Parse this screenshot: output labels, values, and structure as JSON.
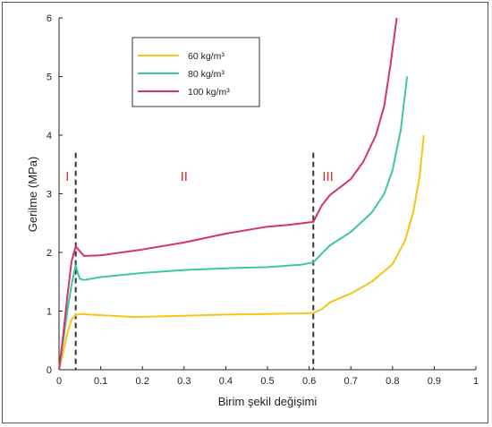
{
  "chart_data": {
    "type": "line",
    "title": "",
    "xlabel": "Birim şekil değişimi",
    "ylabel": "Gerilme (MPa)",
    "xlim": [
      0,
      1
    ],
    "ylim": [
      0,
      6
    ],
    "xticks": [
      "0",
      "0.1",
      "0.2",
      "0.3",
      "0.4",
      "0.5",
      "0.6",
      "0.7",
      "0.8",
      "0.9",
      "1"
    ],
    "yticks": [
      "0",
      "1",
      "2",
      "3",
      "4",
      "5",
      "6"
    ],
    "grid": false,
    "legend_position": "top-left",
    "series": [
      {
        "name": "60 kg/m³",
        "color": "#f5c518",
        "points": [
          [
            0,
            0
          ],
          [
            0.01,
            0.3
          ],
          [
            0.02,
            0.62
          ],
          [
            0.03,
            0.86
          ],
          [
            0.04,
            0.93
          ],
          [
            0.05,
            0.95
          ],
          [
            0.1,
            0.93
          ],
          [
            0.18,
            0.9
          ],
          [
            0.3,
            0.92
          ],
          [
            0.4,
            0.94
          ],
          [
            0.5,
            0.95
          ],
          [
            0.58,
            0.96
          ],
          [
            0.61,
            0.97
          ],
          [
            0.63,
            1.03
          ],
          [
            0.65,
            1.15
          ],
          [
            0.7,
            1.3
          ],
          [
            0.75,
            1.5
          ],
          [
            0.8,
            1.8
          ],
          [
            0.83,
            2.2
          ],
          [
            0.85,
            2.7
          ],
          [
            0.865,
            3.3
          ],
          [
            0.875,
            4.0
          ]
        ]
      },
      {
        "name": "80 kg/m³",
        "color": "#3cc99a",
        "points": [
          [
            0,
            0
          ],
          [
            0.01,
            0.5
          ],
          [
            0.02,
            1.0
          ],
          [
            0.03,
            1.45
          ],
          [
            0.04,
            1.78
          ],
          [
            0.045,
            1.65
          ],
          [
            0.05,
            1.55
          ],
          [
            0.06,
            1.53
          ],
          [
            0.1,
            1.58
          ],
          [
            0.2,
            1.65
          ],
          [
            0.3,
            1.7
          ],
          [
            0.4,
            1.73
          ],
          [
            0.5,
            1.75
          ],
          [
            0.58,
            1.79
          ],
          [
            0.61,
            1.83
          ],
          [
            0.63,
            1.98
          ],
          [
            0.65,
            2.12
          ],
          [
            0.7,
            2.35
          ],
          [
            0.75,
            2.68
          ],
          [
            0.78,
            3.0
          ],
          [
            0.8,
            3.4
          ],
          [
            0.82,
            4.1
          ],
          [
            0.835,
            5.0
          ]
        ]
      },
      {
        "name": "100 kg/m³",
        "color": "#d6336c",
        "points": [
          [
            0,
            0
          ],
          [
            0.01,
            0.6
          ],
          [
            0.02,
            1.25
          ],
          [
            0.03,
            1.85
          ],
          [
            0.04,
            2.1
          ],
          [
            0.05,
            2.02
          ],
          [
            0.06,
            1.94
          ],
          [
            0.1,
            1.95
          ],
          [
            0.2,
            2.05
          ],
          [
            0.3,
            2.17
          ],
          [
            0.4,
            2.32
          ],
          [
            0.5,
            2.44
          ],
          [
            0.55,
            2.47
          ],
          [
            0.61,
            2.52
          ],
          [
            0.63,
            2.8
          ],
          [
            0.65,
            2.98
          ],
          [
            0.7,
            3.25
          ],
          [
            0.73,
            3.55
          ],
          [
            0.76,
            4.0
          ],
          [
            0.78,
            4.5
          ],
          [
            0.795,
            5.2
          ],
          [
            0.81,
            6.0
          ]
        ]
      }
    ],
    "vertical_lines": [
      0.04,
      0.61
    ],
    "regions": [
      {
        "label": "I",
        "x": 0.02,
        "y": 3.3,
        "color": "#e03030"
      },
      {
        "label": "II",
        "x": 0.3,
        "y": 3.3,
        "color": "#e03030"
      },
      {
        "label": "III",
        "x": 0.645,
        "y": 3.3,
        "color": "#e03030"
      }
    ]
  }
}
